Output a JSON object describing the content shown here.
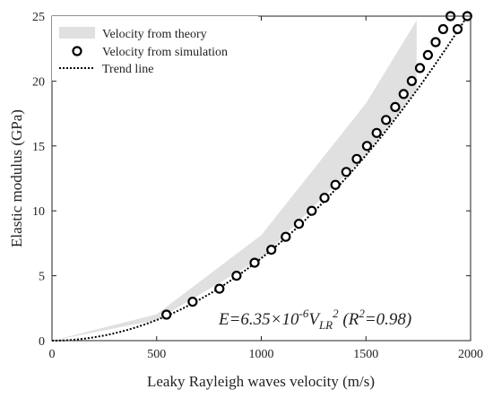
{
  "chart_data": {
    "type": "scatter",
    "xlabel": "Leaky Rayleigh waves velocity (m/s)",
    "ylabel": "Elastic modulus (GPa)",
    "xlim": [
      0,
      2000
    ],
    "ylim": [
      0,
      25
    ],
    "x_ticks": [
      "0",
      "500",
      "1000",
      "1500",
      "2000"
    ],
    "y_ticks": [
      "0",
      "5",
      "10",
      "15",
      "20",
      "25"
    ],
    "grid": false,
    "legend_position": "top-left",
    "legend": [
      {
        "label": "Velocity from theory",
        "style": "band",
        "color": "#e0e0e0"
      },
      {
        "label": "Velocity from simulation",
        "style": "circle",
        "color": "#000000"
      },
      {
        "label": "Trend line",
        "style": "dotted",
        "color": "#000000"
      }
    ],
    "series": [
      {
        "name": "Velocity from simulation",
        "type": "scatter",
        "x": [
          547,
          672,
          800,
          882,
          968,
          1048,
          1117,
          1180,
          1241,
          1302,
          1354,
          1406,
          1456,
          1505,
          1551,
          1596,
          1640,
          1680,
          1719,
          1758,
          1796,
          1833,
          1869,
          1904,
          1938,
          1984
        ],
        "y": [
          2,
          3,
          4,
          5,
          6,
          7,
          8,
          9,
          10,
          11,
          12,
          13,
          14,
          15,
          16,
          17,
          18,
          19,
          20,
          21,
          22,
          23,
          24,
          25,
          24,
          25
        ]
      },
      {
        "name": "Trend line",
        "type": "line",
        "equation": "E = 6.35e-6 * V^2",
        "coefficient": 6.35e-06
      },
      {
        "name": "Velocity from theory",
        "type": "band",
        "x": [
          0,
          500,
          1000,
          1500,
          1742
        ],
        "y_lower": [
          0,
          1.59,
          6.35,
          14.29,
          19.27
        ],
        "y_upper": [
          0,
          2.03,
          8.13,
          18.29,
          24.67
        ]
      }
    ],
    "annotation": {
      "E=": "E=6.35×10",
      "exp": "-6",
      "V": "V",
      "sub": "LR",
      "sq": "2",
      "r2_open": " (R",
      "r2_exp": "2",
      "r2_close": "=0.98)"
    }
  }
}
